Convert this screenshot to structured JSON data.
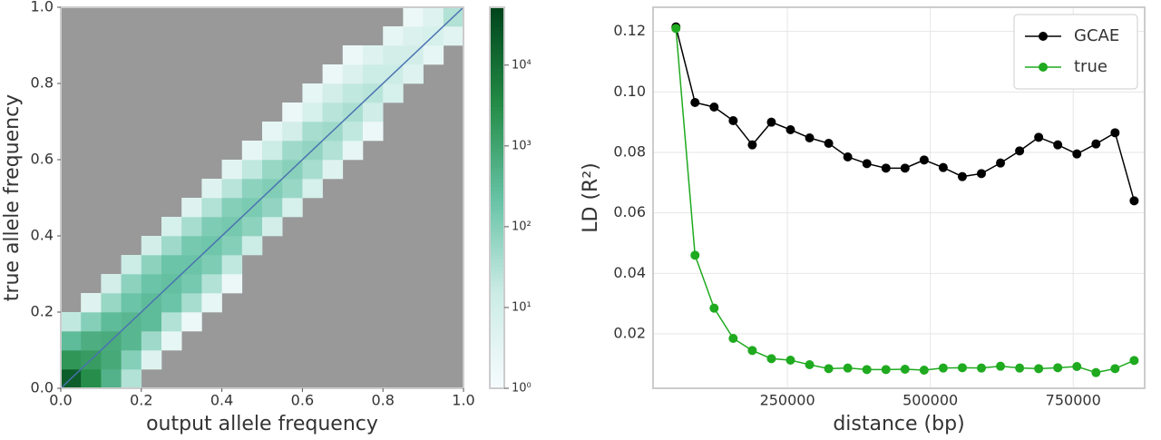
{
  "chart_data": [
    {
      "type": "heatmap",
      "xlabel": "output allele frequency",
      "ylabel": "true allele frequency",
      "xlim": [
        0,
        1
      ],
      "ylim": [
        0,
        1
      ],
      "xticks": [
        {
          "value": 0,
          "label": "0.0"
        },
        0.2,
        0.4,
        0.6,
        0.8,
        {
          "value": 1,
          "label": "1.0"
        }
      ],
      "yticks": [
        {
          "value": 0,
          "label": "0.0"
        },
        0.2,
        0.4,
        0.6,
        0.8,
        {
          "value": 1,
          "label": "1.0"
        }
      ],
      "xbins": [
        0,
        0.05,
        0.1,
        0.15,
        0.2,
        0.25,
        0.3,
        0.35,
        0.4,
        0.45,
        0.5,
        0.55,
        0.6,
        0.65,
        0.7,
        0.75,
        0.8,
        0.85,
        0.9,
        0.95,
        1
      ],
      "ybins": [
        0,
        0.05,
        0.1,
        0.15,
        0.2,
        0.25,
        0.3,
        0.35,
        0.4,
        0.45,
        0.5,
        0.55,
        0.6,
        0.65,
        0.7,
        0.75,
        0.8,
        0.85,
        0.9,
        0.95,
        1
      ],
      "counts": [
        [
          20000,
          3000,
          500,
          30,
          null,
          null,
          null,
          null,
          null,
          null,
          null,
          null,
          null,
          null,
          null,
          null,
          null,
          null,
          null,
          null
        ],
        [
          2000,
          1500,
          800,
          100,
          5,
          null,
          null,
          null,
          null,
          null,
          null,
          null,
          null,
          null,
          null,
          null,
          null,
          null,
          null,
          null
        ],
        [
          300,
          600,
          700,
          400,
          50,
          3,
          null,
          null,
          null,
          null,
          null,
          null,
          null,
          null,
          null,
          null,
          null,
          null,
          null,
          null
        ],
        [
          20,
          100,
          300,
          400,
          300,
          30,
          2,
          null,
          null,
          null,
          null,
          null,
          null,
          null,
          null,
          null,
          null,
          null,
          null,
          null
        ],
        [
          null,
          5,
          60,
          200,
          300,
          200,
          40,
          3,
          null,
          null,
          null,
          null,
          null,
          null,
          null,
          null,
          null,
          null,
          null,
          null
        ],
        [
          null,
          null,
          10,
          80,
          200,
          250,
          150,
          30,
          2,
          null,
          null,
          null,
          null,
          null,
          null,
          null,
          null,
          null,
          null,
          null
        ],
        [
          null,
          null,
          null,
          15,
          80,
          200,
          200,
          120,
          20,
          null,
          null,
          null,
          null,
          null,
          null,
          null,
          null,
          null,
          null,
          null
        ],
        [
          null,
          null,
          null,
          null,
          10,
          50,
          150,
          180,
          100,
          15,
          null,
          null,
          null,
          null,
          null,
          null,
          null,
          null,
          null,
          null
        ],
        [
          null,
          null,
          null,
          null,
          null,
          8,
          40,
          120,
          150,
          80,
          10,
          null,
          null,
          null,
          null,
          null,
          null,
          null,
          null,
          null
        ],
        [
          null,
          null,
          null,
          null,
          null,
          null,
          5,
          30,
          100,
          130,
          70,
          8,
          null,
          null,
          null,
          null,
          null,
          null,
          null,
          null
        ],
        [
          null,
          null,
          null,
          null,
          null,
          null,
          null,
          5,
          25,
          80,
          110,
          60,
          8,
          null,
          null,
          null,
          null,
          null,
          null,
          null
        ],
        [
          null,
          null,
          null,
          null,
          null,
          null,
          null,
          null,
          4,
          20,
          60,
          90,
          40,
          5,
          null,
          null,
          null,
          null,
          null,
          null
        ],
        [
          null,
          null,
          null,
          null,
          null,
          null,
          null,
          null,
          null,
          3,
          15,
          50,
          70,
          30,
          3,
          null,
          null,
          null,
          null,
          null
        ],
        [
          null,
          null,
          null,
          null,
          null,
          null,
          null,
          null,
          null,
          null,
          3,
          10,
          40,
          50,
          20,
          2,
          null,
          null,
          null,
          null
        ],
        [
          null,
          null,
          null,
          null,
          null,
          null,
          null,
          null,
          null,
          null,
          null,
          2,
          8,
          25,
          35,
          12,
          null,
          null,
          null,
          null
        ],
        [
          null,
          null,
          null,
          null,
          null,
          null,
          null,
          null,
          null,
          null,
          null,
          null,
          3,
          10,
          20,
          25,
          8,
          null,
          null,
          null
        ],
        [
          null,
          null,
          null,
          null,
          null,
          null,
          null,
          null,
          null,
          null,
          null,
          null,
          null,
          2,
          6,
          15,
          15,
          5,
          null,
          null
        ],
        [
          null,
          null,
          null,
          null,
          null,
          null,
          null,
          null,
          null,
          null,
          null,
          null,
          null,
          null,
          2,
          5,
          10,
          10,
          3,
          null
        ],
        [
          null,
          null,
          null,
          null,
          null,
          null,
          null,
          null,
          null,
          null,
          null,
          null,
          null,
          null,
          null,
          null,
          3,
          6,
          8,
          4
        ],
        [
          null,
          null,
          null,
          null,
          null,
          null,
          null,
          null,
          null,
          null,
          null,
          null,
          null,
          null,
          null,
          null,
          null,
          2,
          5,
          30
        ]
      ],
      "empty_color": "#999999",
      "colormap": [
        "#f7fcfd",
        "#ccece6",
        "#66c2a4",
        "#238b45",
        "#00441b"
      ],
      "log_scale": true,
      "clim": [
        1,
        52000
      ],
      "cticks": [
        {
          "value": 1,
          "label": "10⁰"
        },
        {
          "value": 10,
          "label": "10¹"
        },
        {
          "value": 100,
          "label": "10²"
        },
        {
          "value": 1000,
          "label": "10³"
        },
        {
          "value": 10000,
          "label": "10⁴"
        }
      ]
    },
    {
      "type": "line",
      "xlabel": "distance (bp)",
      "ylabel": "LD (R²)",
      "x": [
        55000,
        88400,
        121800,
        155200,
        188600,
        222000,
        255400,
        288800,
        322200,
        355600,
        389000,
        422400,
        455800,
        489200,
        522600,
        556000,
        589400,
        622800,
        656200,
        689600,
        723000,
        756400,
        789800,
        823200,
        856600
      ],
      "series": [
        {
          "name": "GCAE",
          "color": "#000000",
          "values": [
            0.1215,
            0.0965,
            0.095,
            0.0905,
            0.0825,
            0.09,
            0.0875,
            0.0848,
            0.083,
            0.0785,
            0.0763,
            0.0748,
            0.0748,
            0.0775,
            0.075,
            0.072,
            0.073,
            0.0765,
            0.0805,
            0.085,
            0.0825,
            0.0795,
            0.0828,
            0.0865,
            0.064
          ]
        },
        {
          "name": "true",
          "color": "#1faa1f",
          "values": [
            0.121,
            0.046,
            0.0285,
            0.0185,
            0.0145,
            0.0118,
            0.0113,
            0.0098,
            0.0085,
            0.0087,
            0.0082,
            0.0082,
            0.0083,
            0.008,
            0.0087,
            0.0088,
            0.0087,
            0.0093,
            0.0087,
            0.0085,
            0.0088,
            0.0092,
            0.0072,
            0.0085,
            0.0112
          ]
        }
      ],
      "xlim": [
        15000,
        875000
      ],
      "ylim": [
        0.002,
        0.128
      ],
      "xticks": [
        250000,
        500000,
        750000
      ],
      "yticks": [
        0.02,
        0.04,
        0.06,
        0.08,
        {
          "value": 0.1,
          "label": "0.10"
        },
        0.12
      ],
      "grid": true,
      "legend": "upper right"
    }
  ]
}
